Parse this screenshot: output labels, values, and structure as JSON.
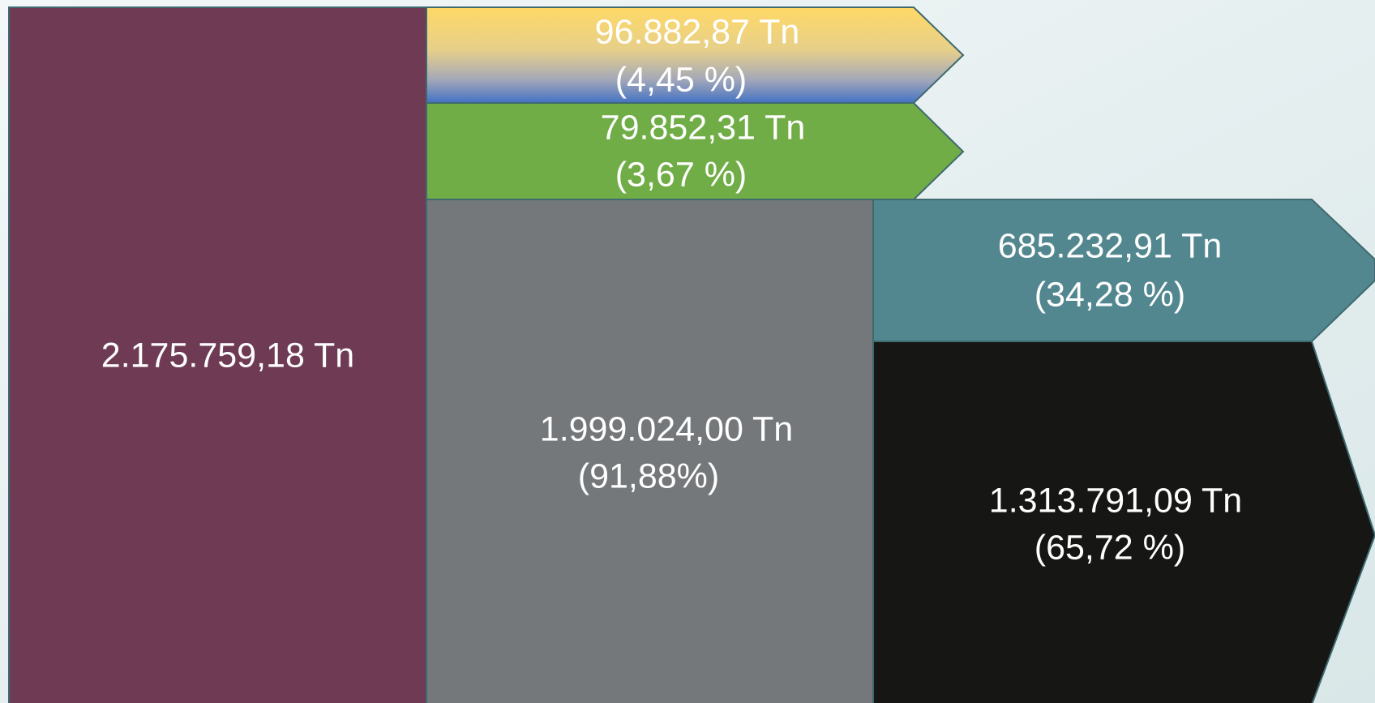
{
  "nodes": [
    {
      "value": "2.175.759,18 Tn"
    },
    {
      "value": "96.882,87 Tn",
      "share": "(4,45 %)"
    },
    {
      "value": "79.852,31 Tn",
      "share": "(3,67 %)"
    },
    {
      "value": "1.999.024,00 Tn",
      "share": "(91,88%)"
    },
    {
      "value": "685.232,91 Tn",
      "share": "(34,28 %)"
    },
    {
      "value": "1.313.791,09 Tn",
      "share": "(65,72 %)"
    }
  ]
}
